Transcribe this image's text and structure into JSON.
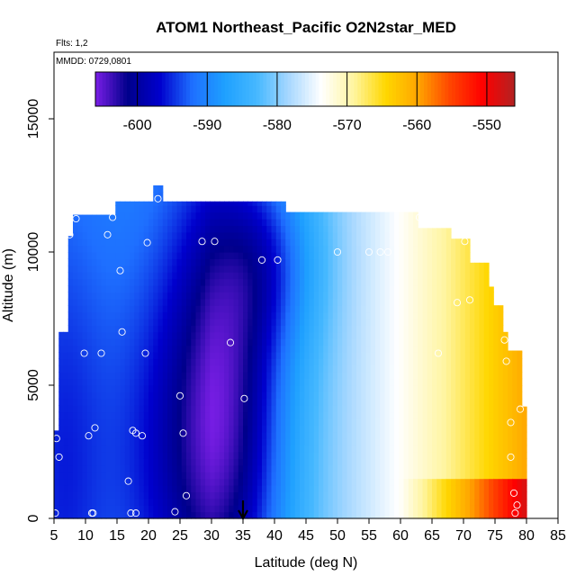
{
  "chart_data": {
    "type": "heatmap",
    "title": "ATOM1 Northeast_Pacific O2N2star_MED",
    "annotation_flights": "Flts: 1,2",
    "annotation_dates": "MMDD: 0729,0801",
    "xlabel": "Latitude (deg N)",
    "ylabel": "Altitude (m)",
    "xlim": [
      5,
      85
    ],
    "ylim": [
      0,
      17500
    ],
    "x_ticks": [
      5,
      10,
      15,
      20,
      25,
      30,
      35,
      40,
      45,
      50,
      55,
      60,
      65,
      70,
      75,
      80,
      85
    ],
    "y_ticks": [
      0,
      5000,
      10000,
      15000
    ],
    "x_tick_labels": [
      "5",
      "10",
      "15",
      "20",
      "25",
      "30",
      "35",
      "40",
      "45",
      "50",
      "55",
      "60",
      "65",
      "70",
      "75",
      "80",
      "85"
    ],
    "y_tick_labels": [
      "0",
      "5000",
      "10000",
      "15000"
    ],
    "colorbar": {
      "range": [
        -606,
        -546
      ],
      "ticks": [
        -600,
        -590,
        -580,
        -570,
        -560,
        -550
      ],
      "tick_labels": [
        "-600",
        "-590",
        "-580",
        "-570",
        "-560",
        "-550"
      ],
      "colors": [
        "#7a1ee6",
        "#00008b",
        "#0000cd",
        "#1e6fff",
        "#1ea0ff",
        "#46b8ff",
        "#a8d8ff",
        "#ffffff",
        "#fff5a0",
        "#ffd700",
        "#ffa500",
        "#ff4500",
        "#ff0000",
        "#b22222"
      ]
    },
    "arrow_marker_latitude": 35,
    "sample_points": [
      [
        5.2,
        200
      ],
      [
        5.8,
        2300
      ],
      [
        5.4,
        3000
      ],
      [
        7.5,
        10650
      ],
      [
        8.5,
        11250
      ],
      [
        9.8,
        6200
      ],
      [
        10.5,
        3100
      ],
      [
        11,
        200
      ],
      [
        11.2,
        200
      ],
      [
        11.5,
        3400
      ],
      [
        12.5,
        6200
      ],
      [
        13.5,
        10650
      ],
      [
        14.3,
        11300
      ],
      [
        15.5,
        9300
      ],
      [
        15.8,
        7000
      ],
      [
        16.8,
        1400
      ],
      [
        17.2,
        200
      ],
      [
        17.5,
        3300
      ],
      [
        18,
        3200
      ],
      [
        18,
        200
      ],
      [
        19,
        3100
      ],
      [
        19.5,
        6200
      ],
      [
        19.8,
        10350
      ],
      [
        21.5,
        12000
      ],
      [
        24.2,
        250
      ],
      [
        25,
        4600
      ],
      [
        25.5,
        3200
      ],
      [
        26,
        850
      ],
      [
        28.5,
        10400
      ],
      [
        30.5,
        10400
      ],
      [
        33,
        6600
      ],
      [
        35.2,
        4500
      ],
      [
        38,
        9700
      ],
      [
        40.5,
        9700
      ],
      [
        50,
        10000
      ],
      [
        55,
        10000
      ],
      [
        56.8,
        10000
      ],
      [
        58,
        10000
      ],
      [
        63,
        11300
      ],
      [
        66,
        6200
      ],
      [
        69,
        8100
      ],
      [
        70.2,
        10400
      ],
      [
        71,
        8200
      ],
      [
        76.5,
        6700
      ],
      [
        76.8,
        5900
      ],
      [
        77.5,
        3600
      ],
      [
        77.5,
        2300
      ],
      [
        78,
        950
      ],
      [
        78.5,
        500
      ],
      [
        78.2,
        200
      ],
      [
        79,
        4100
      ]
    ]
  }
}
